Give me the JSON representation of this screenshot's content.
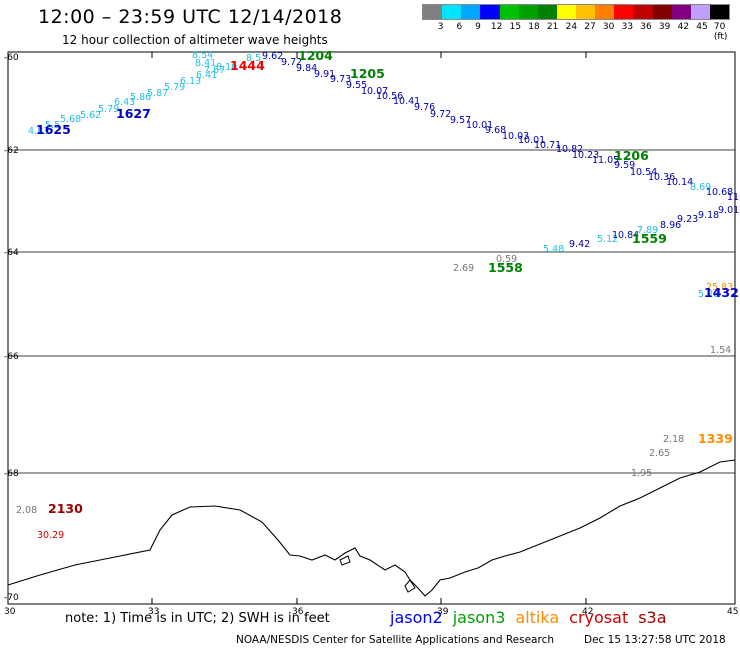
{
  "header": {
    "title": "12:00 – 23:59 UTC 12/14/2018",
    "subtitle": "12 hour collection of altimeter wave heights"
  },
  "color_scale": {
    "colors": [
      "#7f7f7f",
      "#00e5ff",
      "#00a8ff",
      "#0000ff",
      "#00c000",
      "#00a000",
      "#008000",
      "#ffff00",
      "#ffc000",
      "#ff8000",
      "#ff0000",
      "#c00000",
      "#800000",
      "#800080",
      "#c0a0ff",
      "#000000"
    ],
    "labels": [
      "3",
      "6",
      "9",
      "12",
      "15",
      "18",
      "21",
      "24",
      "27",
      "30",
      "33",
      "36",
      "39",
      "42",
      "45",
      "70 (ft)"
    ]
  },
  "map": {
    "lat_labels": [
      "-60",
      "-62",
      "-64",
      "-66",
      "-68",
      "-70"
    ],
    "lon_labels": [
      "30",
      "33",
      "36",
      "39",
      "42",
      "45"
    ],
    "tracks": {
      "jason2_a": [
        "4.83",
        "5.5",
        "5.68",
        "5.62",
        "5.79",
        "6.43",
        "5.86",
        "5.87",
        "5.79",
        "6.13",
        "6.41",
        "7.67",
        "8.10",
        "8.41",
        "8.54"
      ],
      "jason3_a": [
        "9.62",
        "9.72",
        "9.84",
        "9.91",
        "9.73",
        "9.55",
        "10.07",
        "10.56",
        "10.41",
        "9.76",
        "9.72",
        "9.57",
        "10.01",
        "9.68",
        "10.03",
        "10.01",
        "10.71",
        "10.82",
        "10.23",
        "11.05",
        "9.59",
        "10.54",
        "10.36",
        "10.14",
        "8.69",
        "10.68",
        "11"
      ],
      "south": [
        "5.48",
        "9.42",
        "5.12",
        "10.84",
        "7.89",
        "8.96",
        "9.23",
        "9.18",
        "9.01"
      ]
    },
    "other_values": [
      "0.59",
      "2.69",
      "5.26",
      "2.18",
      "2.65",
      "1.95",
      "1.54",
      "2.08",
      "30.29",
      "25.83",
      "8.5"
    ],
    "time_labels": [
      {
        "text": "1625",
        "color": "#0000cc"
      },
      {
        "text": "1627",
        "color": "#0000cc"
      },
      {
        "text": "1444",
        "color": "#ee0000"
      },
      {
        "text": "1204",
        "color": "#008000"
      },
      {
        "text": "1205",
        "color": "#008000"
      },
      {
        "text": "1206",
        "color": "#008000"
      },
      {
        "text": "1559",
        "color": "#008000"
      },
      {
        "text": "1558",
        "color": "#008000"
      },
      {
        "text": "1432",
        "color": "#0000cc"
      },
      {
        "text": "1339",
        "color": "#ff8c00"
      },
      {
        "text": "2130",
        "color": "#990000"
      }
    ]
  },
  "footer": {
    "note": "note: 1) Time is in UTC; 2) SWH is in feet",
    "legend": [
      {
        "name": "jason2",
        "color": "#0000ff"
      },
      {
        "name": "jason3",
        "color": "#00a000"
      },
      {
        "name": "altika",
        "color": "#ff8c00"
      },
      {
        "name": "cryosat",
        "color": "#cc0000"
      },
      {
        "name": "s3a",
        "color": "#990000"
      }
    ],
    "credit": "NOAA/NESDIS Center for Satellite Applications and Research",
    "timestamp": "Dec 15 13:27:58 UTC 2018"
  }
}
